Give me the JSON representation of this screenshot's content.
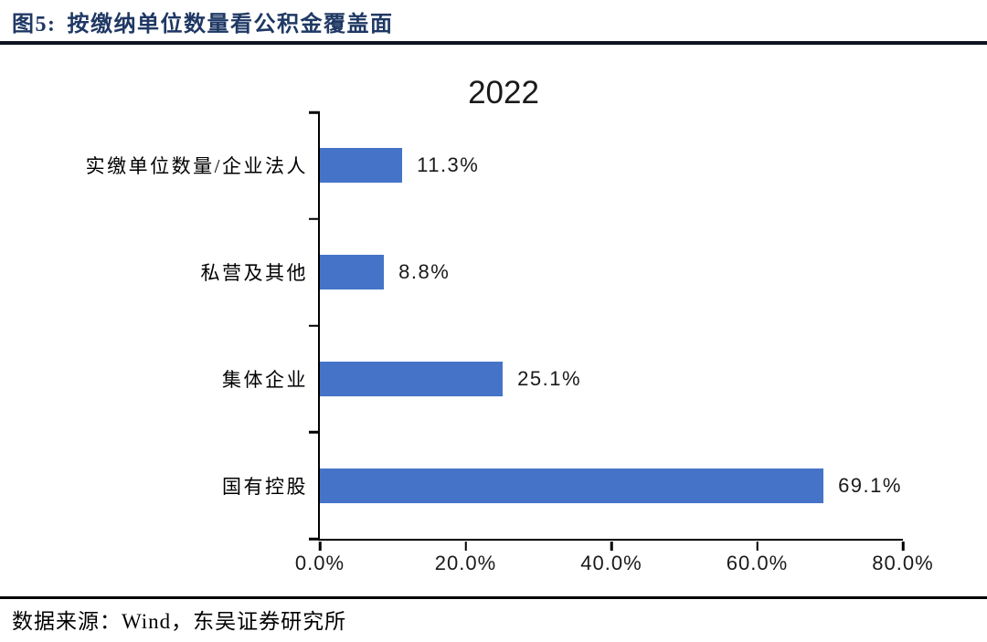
{
  "figure": {
    "label": "图5:",
    "title": "按缴纳单位数量看公积金覆盖面"
  },
  "chart_data": {
    "type": "bar",
    "orientation": "horizontal",
    "title": "2022",
    "categories": [
      "实缴单位数量/企业法人",
      "私营及其他",
      "集体企业",
      "国有控股"
    ],
    "values": [
      11.3,
      8.8,
      25.1,
      69.1
    ],
    "value_labels": [
      "11.3%",
      "8.8%",
      "25.1%",
      "69.1%"
    ],
    "xlabel": "",
    "ylabel": "",
    "xlim": [
      0,
      80
    ],
    "x_tick_values": [
      0,
      20,
      40,
      60,
      80
    ],
    "x_tick_labels": [
      "0.0%",
      "20.0%",
      "40.0%",
      "60.0%",
      "80.0%"
    ],
    "bar_color": "#4573C8",
    "axis_color": "#000000",
    "grid": false,
    "legend": "none"
  },
  "footer": {
    "source": "数据来源：Wind，东吴证券研究所"
  },
  "colors": {
    "figure_title": "#1F3864",
    "top_rule": "#0E1320",
    "bottom_rule": "#000000",
    "bar": "#4573C8",
    "text": "#1A1A1A",
    "background": "#FFFFFF"
  }
}
